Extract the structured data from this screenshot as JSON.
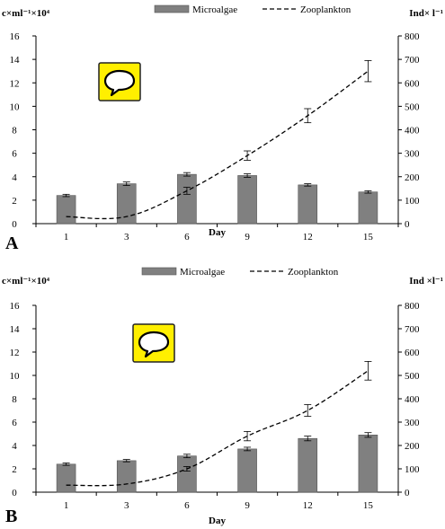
{
  "chart_data": [
    {
      "type": "bar",
      "panel_label": "A",
      "categories": [
        "1",
        "3",
        "6",
        "9",
        "12",
        "15"
      ],
      "series": [
        {
          "name": "Microalgae",
          "type": "bar",
          "axis": "left",
          "values": [
            2.4,
            3.4,
            4.2,
            4.1,
            3.3,
            2.7
          ],
          "error": [
            0.1,
            0.15,
            0.15,
            0.15,
            0.1,
            0.1
          ]
        },
        {
          "name": "Zooplankton",
          "type": "line",
          "style": "dashed",
          "axis": "right",
          "values": [
            30,
            30,
            140,
            290,
            460,
            650
          ],
          "error": [
            0,
            0,
            15,
            20,
            30,
            45
          ]
        }
      ],
      "xlabel": "Day",
      "ylabel_left": "c×ml⁻¹×10⁴",
      "ylabel_right": "Ind× l⁻¹",
      "ylim_left": [
        0,
        16
      ],
      "yticks_left": [
        "0",
        "2",
        "4",
        "6",
        "8",
        "10",
        "12",
        "14",
        "16"
      ],
      "ylim_right": [
        0,
        800
      ],
      "yticks_right": [
        "0",
        "100",
        "200",
        "300",
        "400",
        "500",
        "600",
        "700",
        "800"
      ],
      "grid": false,
      "legend_position": "top-center",
      "bar_color": "#808080",
      "icon": "speech-bubble-icon"
    },
    {
      "type": "bar",
      "panel_label": "B",
      "categories": [
        "1",
        "3",
        "6",
        "9",
        "12",
        "15"
      ],
      "series": [
        {
          "name": "Microalgae",
          "type": "bar",
          "axis": "left",
          "values": [
            2.4,
            2.7,
            3.1,
            3.7,
            4.6,
            4.9
          ],
          "error": [
            0.1,
            0.1,
            0.15,
            0.15,
            0.2,
            0.2
          ]
        },
        {
          "name": "Zooplankton",
          "type": "line",
          "style": "dashed",
          "axis": "right",
          "values": [
            30,
            35,
            100,
            240,
            350,
            520
          ],
          "error": [
            0,
            0,
            10,
            20,
            25,
            40
          ]
        }
      ],
      "xlabel": "Day",
      "ylabel_left": "c×ml⁻¹×10⁴",
      "ylabel_right": "Ind ×l⁻¹",
      "ylim_left": [
        0,
        16
      ],
      "yticks_left": [
        "0",
        "2",
        "4",
        "6",
        "8",
        "10",
        "12",
        "14",
        "16"
      ],
      "ylim_right": [
        0,
        800
      ],
      "yticks_right": [
        "0",
        "100",
        "200",
        "300",
        "400",
        "500",
        "600",
        "700",
        "800"
      ],
      "grid": false,
      "legend_position": "top-center",
      "bar_color": "#808080",
      "icon": "speech-bubble-icon"
    }
  ]
}
